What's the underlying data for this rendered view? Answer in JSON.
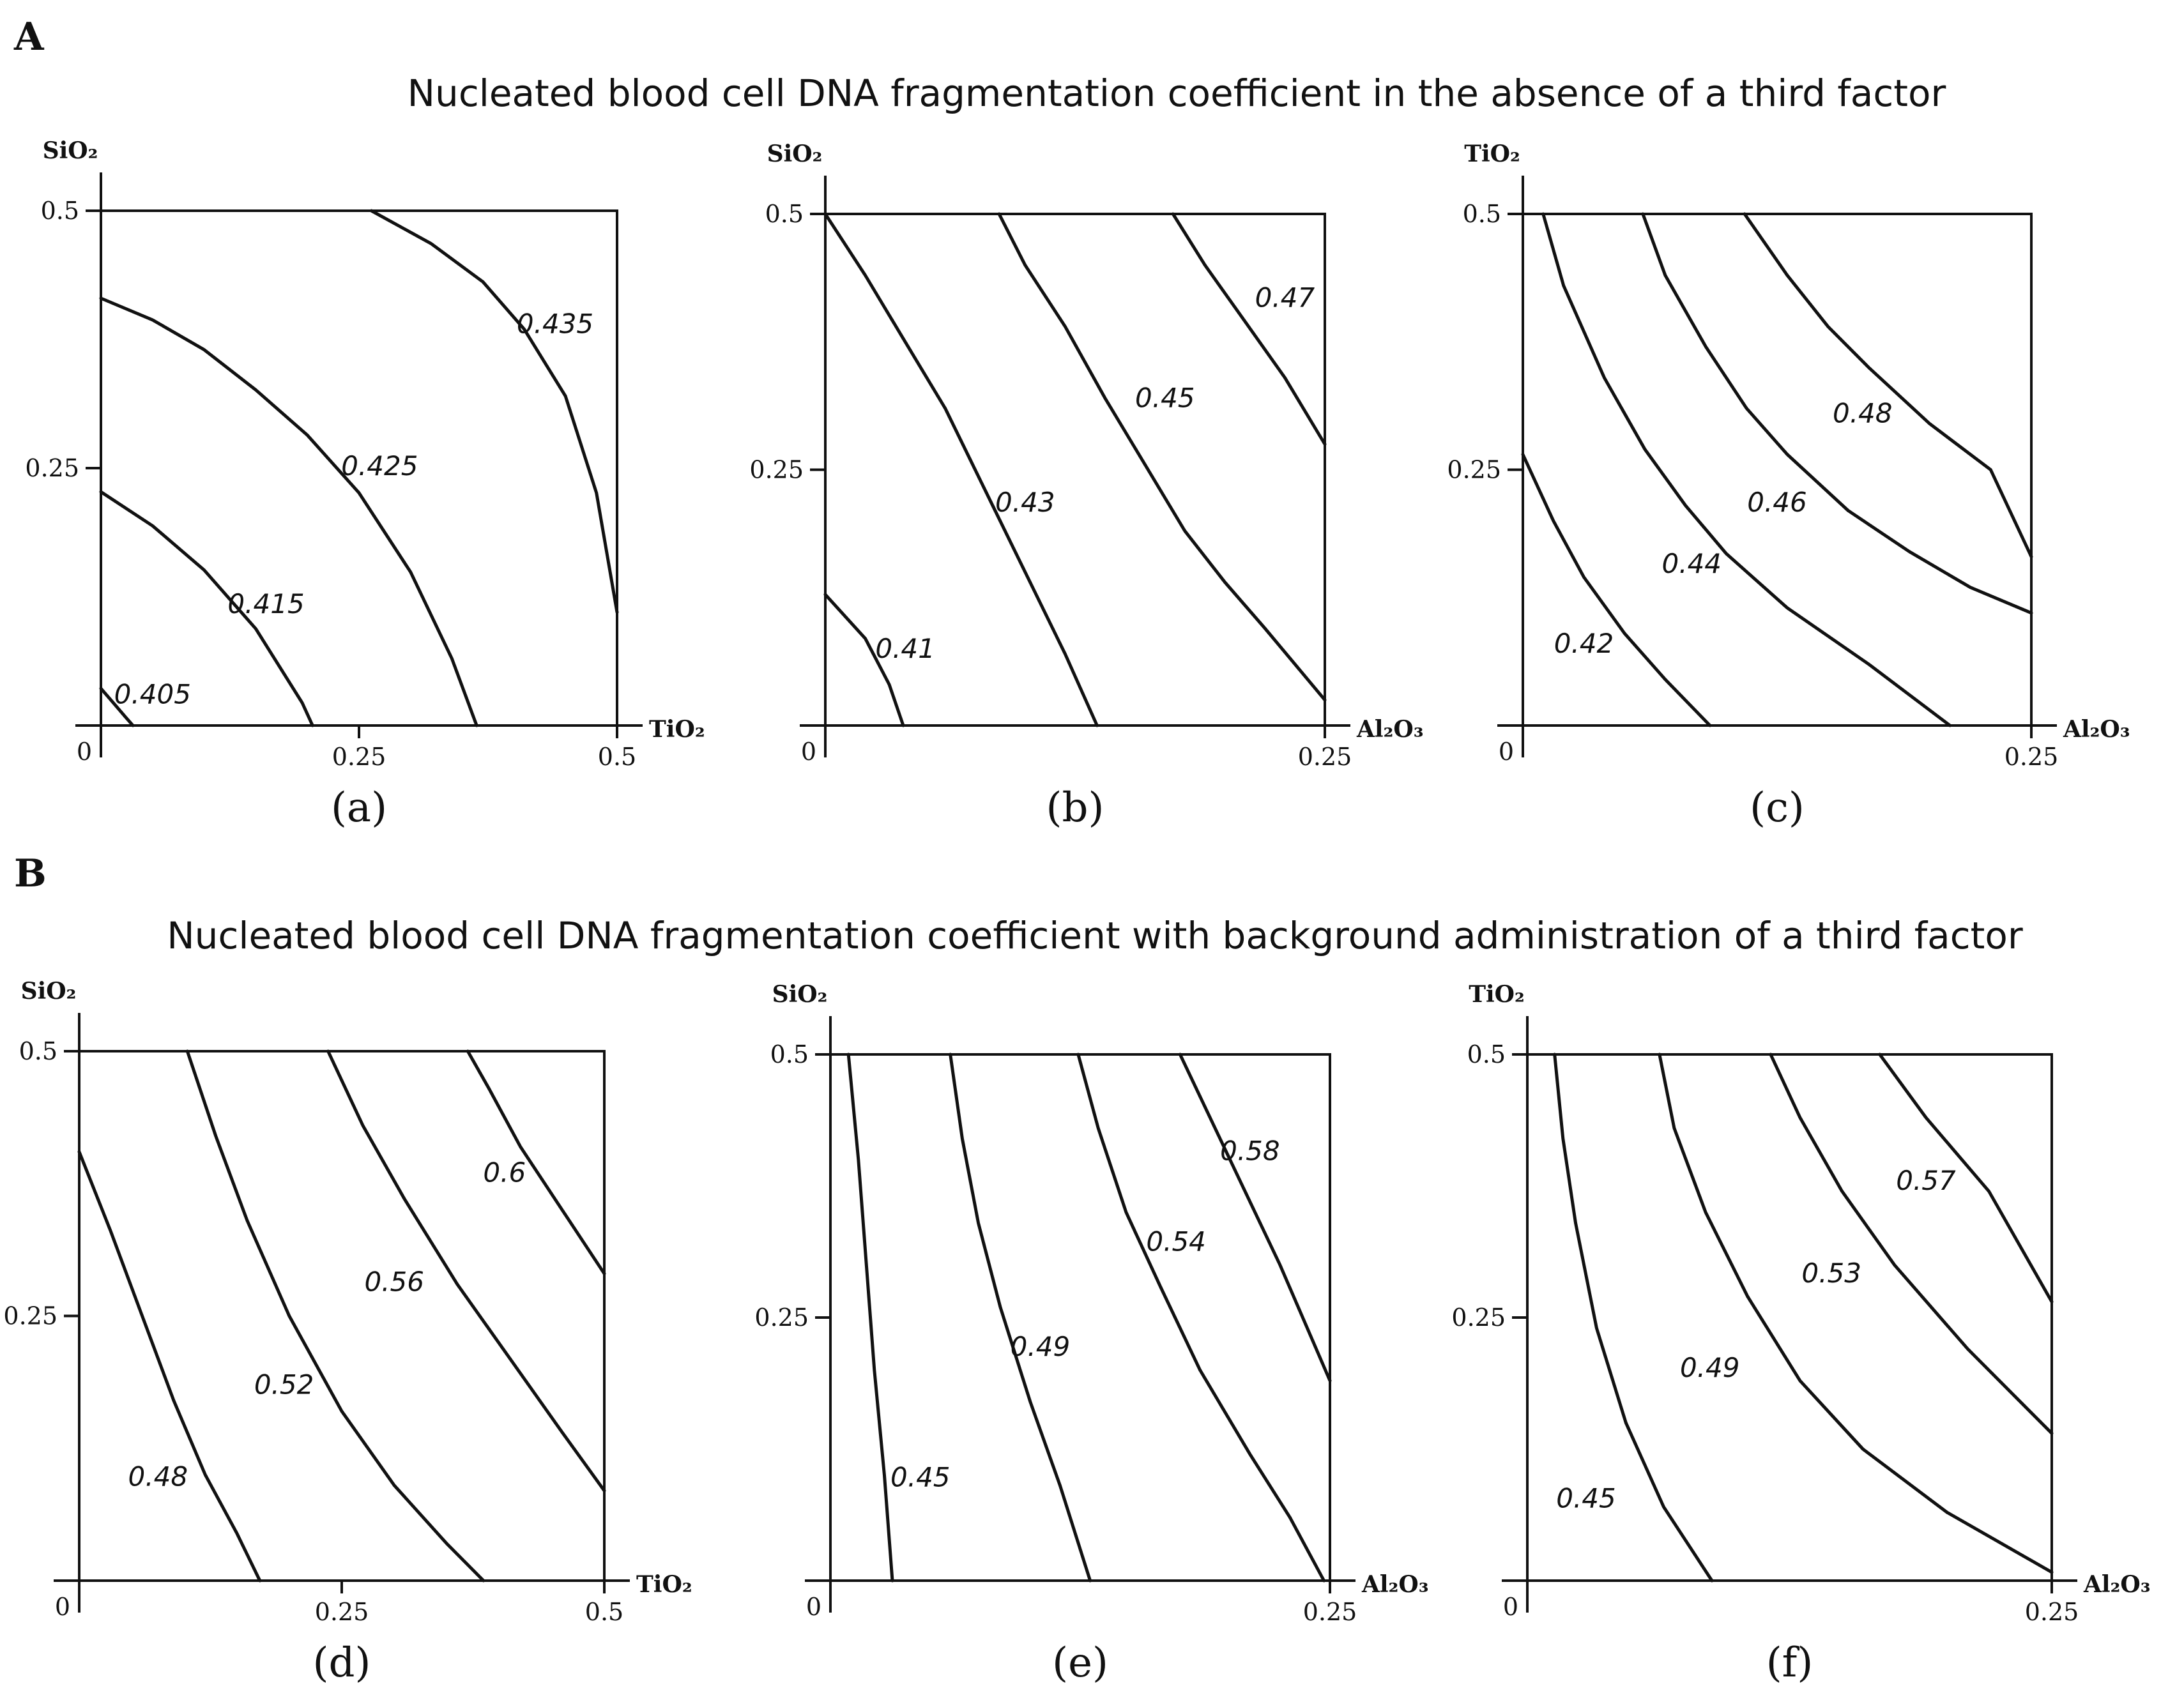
{
  "sections": [
    {
      "letter": "A",
      "title": "Nucleated blood cell DNA fragmentation coefficient in the absence of a third factor"
    },
    {
      "letter": "B",
      "title": "Nucleated blood cell DNA fragmentation coefficient with background administration of a third factor"
    }
  ],
  "chart_data": [
    {
      "type": "contour",
      "panel": "(a)",
      "xlabel": "TiO2",
      "ylabel": "SiO2",
      "xlim": [
        0,
        0.5
      ],
      "ylim": [
        0,
        0.5
      ],
      "xticks": [
        "0.25",
        "0.5"
      ],
      "yticks": [
        "0.25",
        "0.5"
      ],
      "origin_label": "0",
      "contours": [
        {
          "label": "0.405",
          "label_at": [
            0.05,
            0.03
          ],
          "points": [
            [
              0,
              0.036
            ],
            [
              0.012,
              0.022
            ],
            [
              0.024,
              0.008
            ],
            [
              0.031,
              0
            ]
          ]
        },
        {
          "label": "0.415",
          "label_at": [
            0.16,
            0.118
          ],
          "points": [
            [
              0,
              0.227
            ],
            [
              0.05,
              0.194
            ],
            [
              0.1,
              0.151
            ],
            [
              0.15,
              0.094
            ],
            [
              0.195,
              0.022
            ],
            [
              0.205,
              0
            ]
          ]
        },
        {
          "label": "0.425",
          "label_at": [
            0.27,
            0.252
          ],
          "points": [
            [
              0,
              0.415
            ],
            [
              0.05,
              0.394
            ],
            [
              0.1,
              0.365
            ],
            [
              0.15,
              0.326
            ],
            [
              0.2,
              0.282
            ],
            [
              0.25,
              0.226
            ],
            [
              0.3,
              0.149
            ],
            [
              0.34,
              0.065
            ],
            [
              0.364,
              0
            ]
          ]
        },
        {
          "label": "0.435",
          "label_at": [
            0.44,
            0.39
          ],
          "points": [
            [
              0.262,
              0.5
            ],
            [
              0.32,
              0.468
            ],
            [
              0.37,
              0.431
            ],
            [
              0.41,
              0.385
            ],
            [
              0.45,
              0.32
            ],
            [
              0.48,
              0.226
            ],
            [
              0.5,
              0.11
            ]
          ]
        }
      ]
    },
    {
      "type": "contour",
      "panel": "(b)",
      "xlabel": "Al2O3",
      "ylabel": "SiO2",
      "xlim": [
        0,
        0.25
      ],
      "ylim": [
        0,
        0.5
      ],
      "xticks": [
        "0.25"
      ],
      "yticks": [
        "0.25",
        "0.5"
      ],
      "origin_label": "0",
      "contours": [
        {
          "label": "0.41",
          "label_at": [
            0.04,
            0.075
          ],
          "points": [
            [
              0,
              0.128
            ],
            [
              0.02,
              0.085
            ],
            [
              0.032,
              0.04
            ],
            [
              0.039,
              0
            ]
          ]
        },
        {
          "label": "0.43",
          "label_at": [
            0.1,
            0.218
          ],
          "points": [
            [
              0,
              0.5
            ],
            [
              0.02,
              0.44
            ],
            [
              0.04,
              0.375
            ],
            [
              0.06,
              0.31
            ],
            [
              0.08,
              0.23
            ],
            [
              0.1,
              0.15
            ],
            [
              0.12,
              0.07
            ],
            [
              0.136,
              0
            ]
          ]
        },
        {
          "label": "0.45",
          "label_at": [
            0.17,
            0.32
          ],
          "points": [
            [
              0.087,
              0.5
            ],
            [
              0.1,
              0.45
            ],
            [
              0.12,
              0.39
            ],
            [
              0.14,
              0.32
            ],
            [
              0.16,
              0.255
            ],
            [
              0.18,
              0.19
            ],
            [
              0.2,
              0.14
            ],
            [
              0.22,
              0.095
            ],
            [
              0.25,
              0.025
            ]
          ]
        },
        {
          "label": "0.47",
          "label_at": [
            0.23,
            0.418
          ],
          "points": [
            [
              0.174,
              0.5
            ],
            [
              0.19,
              0.45
            ],
            [
              0.21,
              0.395
            ],
            [
              0.23,
              0.34
            ],
            [
              0.25,
              0.275
            ]
          ]
        }
      ]
    },
    {
      "type": "contour",
      "panel": "(c)",
      "xlabel": "Al2O3",
      "ylabel": "TiO2",
      "xlim": [
        0,
        0.25
      ],
      "ylim": [
        0,
        0.5
      ],
      "xticks": [
        "0.25"
      ],
      "yticks": [
        "0.25",
        "0.5"
      ],
      "origin_label": "0",
      "contours": [
        {
          "label": "0.42",
          "label_at": [
            0.03,
            0.08
          ],
          "points": [
            [
              0,
              0.265
            ],
            [
              0.015,
              0.2
            ],
            [
              0.03,
              0.145
            ],
            [
              0.05,
              0.09
            ],
            [
              0.07,
              0.045
            ],
            [
              0.092,
              0
            ]
          ]
        },
        {
          "label": "0.44",
          "label_at": [
            0.083,
            0.158
          ],
          "points": [
            [
              0.01,
              0.5
            ],
            [
              0.02,
              0.43
            ],
            [
              0.04,
              0.34
            ],
            [
              0.06,
              0.27
            ],
            [
              0.08,
              0.215
            ],
            [
              0.1,
              0.168
            ],
            [
              0.13,
              0.115
            ],
            [
              0.17,
              0.06
            ],
            [
              0.21,
              0
            ]
          ]
        },
        {
          "label": "0.46",
          "label_at": [
            0.125,
            0.218
          ],
          "points": [
            [
              0.059,
              0.5
            ],
            [
              0.07,
              0.44
            ],
            [
              0.09,
              0.37
            ],
            [
              0.11,
              0.31
            ],
            [
              0.13,
              0.265
            ],
            [
              0.16,
              0.21
            ],
            [
              0.19,
              0.17
            ],
            [
              0.22,
              0.135
            ],
            [
              0.25,
              0.11
            ]
          ]
        },
        {
          "label": "0.48",
          "label_at": [
            0.167,
            0.305
          ],
          "points": [
            [
              0.109,
              0.5
            ],
            [
              0.13,
              0.44
            ],
            [
              0.15,
              0.39
            ],
            [
              0.17,
              0.35
            ],
            [
              0.2,
              0.295
            ],
            [
              0.23,
              0.25
            ],
            [
              0.25,
              0.165
            ]
          ]
        }
      ]
    },
    {
      "type": "contour",
      "panel": "(d)",
      "xlabel": "TiO2",
      "ylabel": "SiO2",
      "xlim": [
        0,
        0.5
      ],
      "ylim": [
        0,
        0.5
      ],
      "xticks": [
        "0.25",
        "0.5"
      ],
      "yticks": [
        "0.25",
        "0.5"
      ],
      "origin_label": "0",
      "contours": [
        {
          "label": "0.48",
          "label_at": [
            0.075,
            0.098
          ],
          "points": [
            [
              0,
              0.405
            ],
            [
              0.03,
              0.33
            ],
            [
              0.06,
              0.25
            ],
            [
              0.09,
              0.17
            ],
            [
              0.12,
              0.1
            ],
            [
              0.15,
              0.045
            ],
            [
              0.172,
              0
            ]
          ]
        },
        {
          "label": "0.52",
          "label_at": [
            0.195,
            0.185
          ],
          "points": [
            [
              0.103,
              0.5
            ],
            [
              0.13,
              0.42
            ],
            [
              0.16,
              0.34
            ],
            [
              0.2,
              0.25
            ],
            [
              0.25,
              0.16
            ],
            [
              0.3,
              0.09
            ],
            [
              0.35,
              0.035
            ],
            [
              0.385,
              0
            ]
          ]
        },
        {
          "label": "0.56",
          "label_at": [
            0.3,
            0.282
          ],
          "points": [
            [
              0.237,
              0.5
            ],
            [
              0.27,
              0.43
            ],
            [
              0.31,
              0.36
            ],
            [
              0.36,
              0.28
            ],
            [
              0.41,
              0.21
            ],
            [
              0.46,
              0.14
            ],
            [
              0.5,
              0.085
            ]
          ]
        },
        {
          "label": "0.6",
          "label_at": [
            0.405,
            0.385
          ],
          "points": [
            [
              0.37,
              0.5
            ],
            [
              0.39,
              0.465
            ],
            [
              0.42,
              0.41
            ],
            [
              0.46,
              0.35
            ],
            [
              0.5,
              0.29
            ]
          ]
        }
      ]
    },
    {
      "type": "contour",
      "panel": "(e)",
      "xlabel": "Al2O3",
      "ylabel": "SiO2",
      "xlim": [
        0,
        0.25
      ],
      "ylim": [
        0,
        0.5
      ],
      "xticks": [
        "0.25"
      ],
      "yticks": [
        "0.25",
        "0.5"
      ],
      "origin_label": "0",
      "contours": [
        {
          "label": "0.45",
          "label_at": [
            0.045,
            0.098
          ],
          "points": [
            [
              0.009,
              0.5
            ],
            [
              0.014,
              0.4
            ],
            [
              0.018,
              0.3
            ],
            [
              0.022,
              0.2
            ],
            [
              0.027,
              0.1
            ],
            [
              0.031,
              0
            ]
          ]
        },
        {
          "label": "0.49",
          "label_at": [
            0.105,
            0.222
          ],
          "points": [
            [
              0.06,
              0.5
            ],
            [
              0.066,
              0.42
            ],
            [
              0.074,
              0.34
            ],
            [
              0.085,
              0.26
            ],
            [
              0.1,
              0.17
            ],
            [
              0.115,
              0.09
            ],
            [
              0.13,
              0
            ]
          ]
        },
        {
          "label": "0.54",
          "label_at": [
            0.173,
            0.322
          ],
          "points": [
            [
              0.124,
              0.5
            ],
            [
              0.134,
              0.43
            ],
            [
              0.148,
              0.35
            ],
            [
              0.165,
              0.28
            ],
            [
              0.185,
              0.2
            ],
            [
              0.21,
              0.12
            ],
            [
              0.23,
              0.06
            ],
            [
              0.247,
              0
            ]
          ]
        },
        {
          "label": "0.58",
          "label_at": [
            0.21,
            0.408
          ],
          "points": [
            [
              0.175,
              0.5
            ],
            [
              0.19,
              0.44
            ],
            [
              0.205,
              0.38
            ],
            [
              0.225,
              0.3
            ],
            [
              0.25,
              0.19
            ]
          ]
        }
      ]
    },
    {
      "type": "contour",
      "panel": "(f)",
      "xlabel": "Al2O3",
      "ylabel": "TiO2",
      "xlim": [
        0,
        0.25
      ],
      "ylim": [
        0,
        0.5
      ],
      "xticks": [
        "0.25"
      ],
      "yticks": [
        "0.25",
        "0.5"
      ],
      "origin_label": "0",
      "contours": [
        {
          "label": "0.45",
          "label_at": [
            0.028,
            0.078
          ],
          "points": [
            [
              0.013,
              0.5
            ],
            [
              0.017,
              0.42
            ],
            [
              0.023,
              0.34
            ],
            [
              0.033,
              0.24
            ],
            [
              0.047,
              0.15
            ],
            [
              0.065,
              0.07
            ],
            [
              0.088,
              0
            ]
          ]
        },
        {
          "label": "0.49",
          "label_at": [
            0.087,
            0.202
          ],
          "points": [
            [
              0.063,
              0.5
            ],
            [
              0.07,
              0.43
            ],
            [
              0.085,
              0.35
            ],
            [
              0.105,
              0.27
            ],
            [
              0.13,
              0.19
            ],
            [
              0.16,
              0.125
            ],
            [
              0.2,
              0.065
            ],
            [
              0.25,
              0.008
            ]
          ]
        },
        {
          "label": "0.53",
          "label_at": [
            0.145,
            0.292
          ],
          "points": [
            [
              0.116,
              0.5
            ],
            [
              0.13,
              0.44
            ],
            [
              0.15,
              0.37
            ],
            [
              0.175,
              0.3
            ],
            [
              0.21,
              0.22
            ],
            [
              0.25,
              0.14
            ]
          ]
        },
        {
          "label": "0.57",
          "label_at": [
            0.19,
            0.38
          ],
          "points": [
            [
              0.168,
              0.5
            ],
            [
              0.19,
              0.44
            ],
            [
              0.22,
              0.37
            ],
            [
              0.25,
              0.265
            ]
          ]
        }
      ]
    }
  ]
}
